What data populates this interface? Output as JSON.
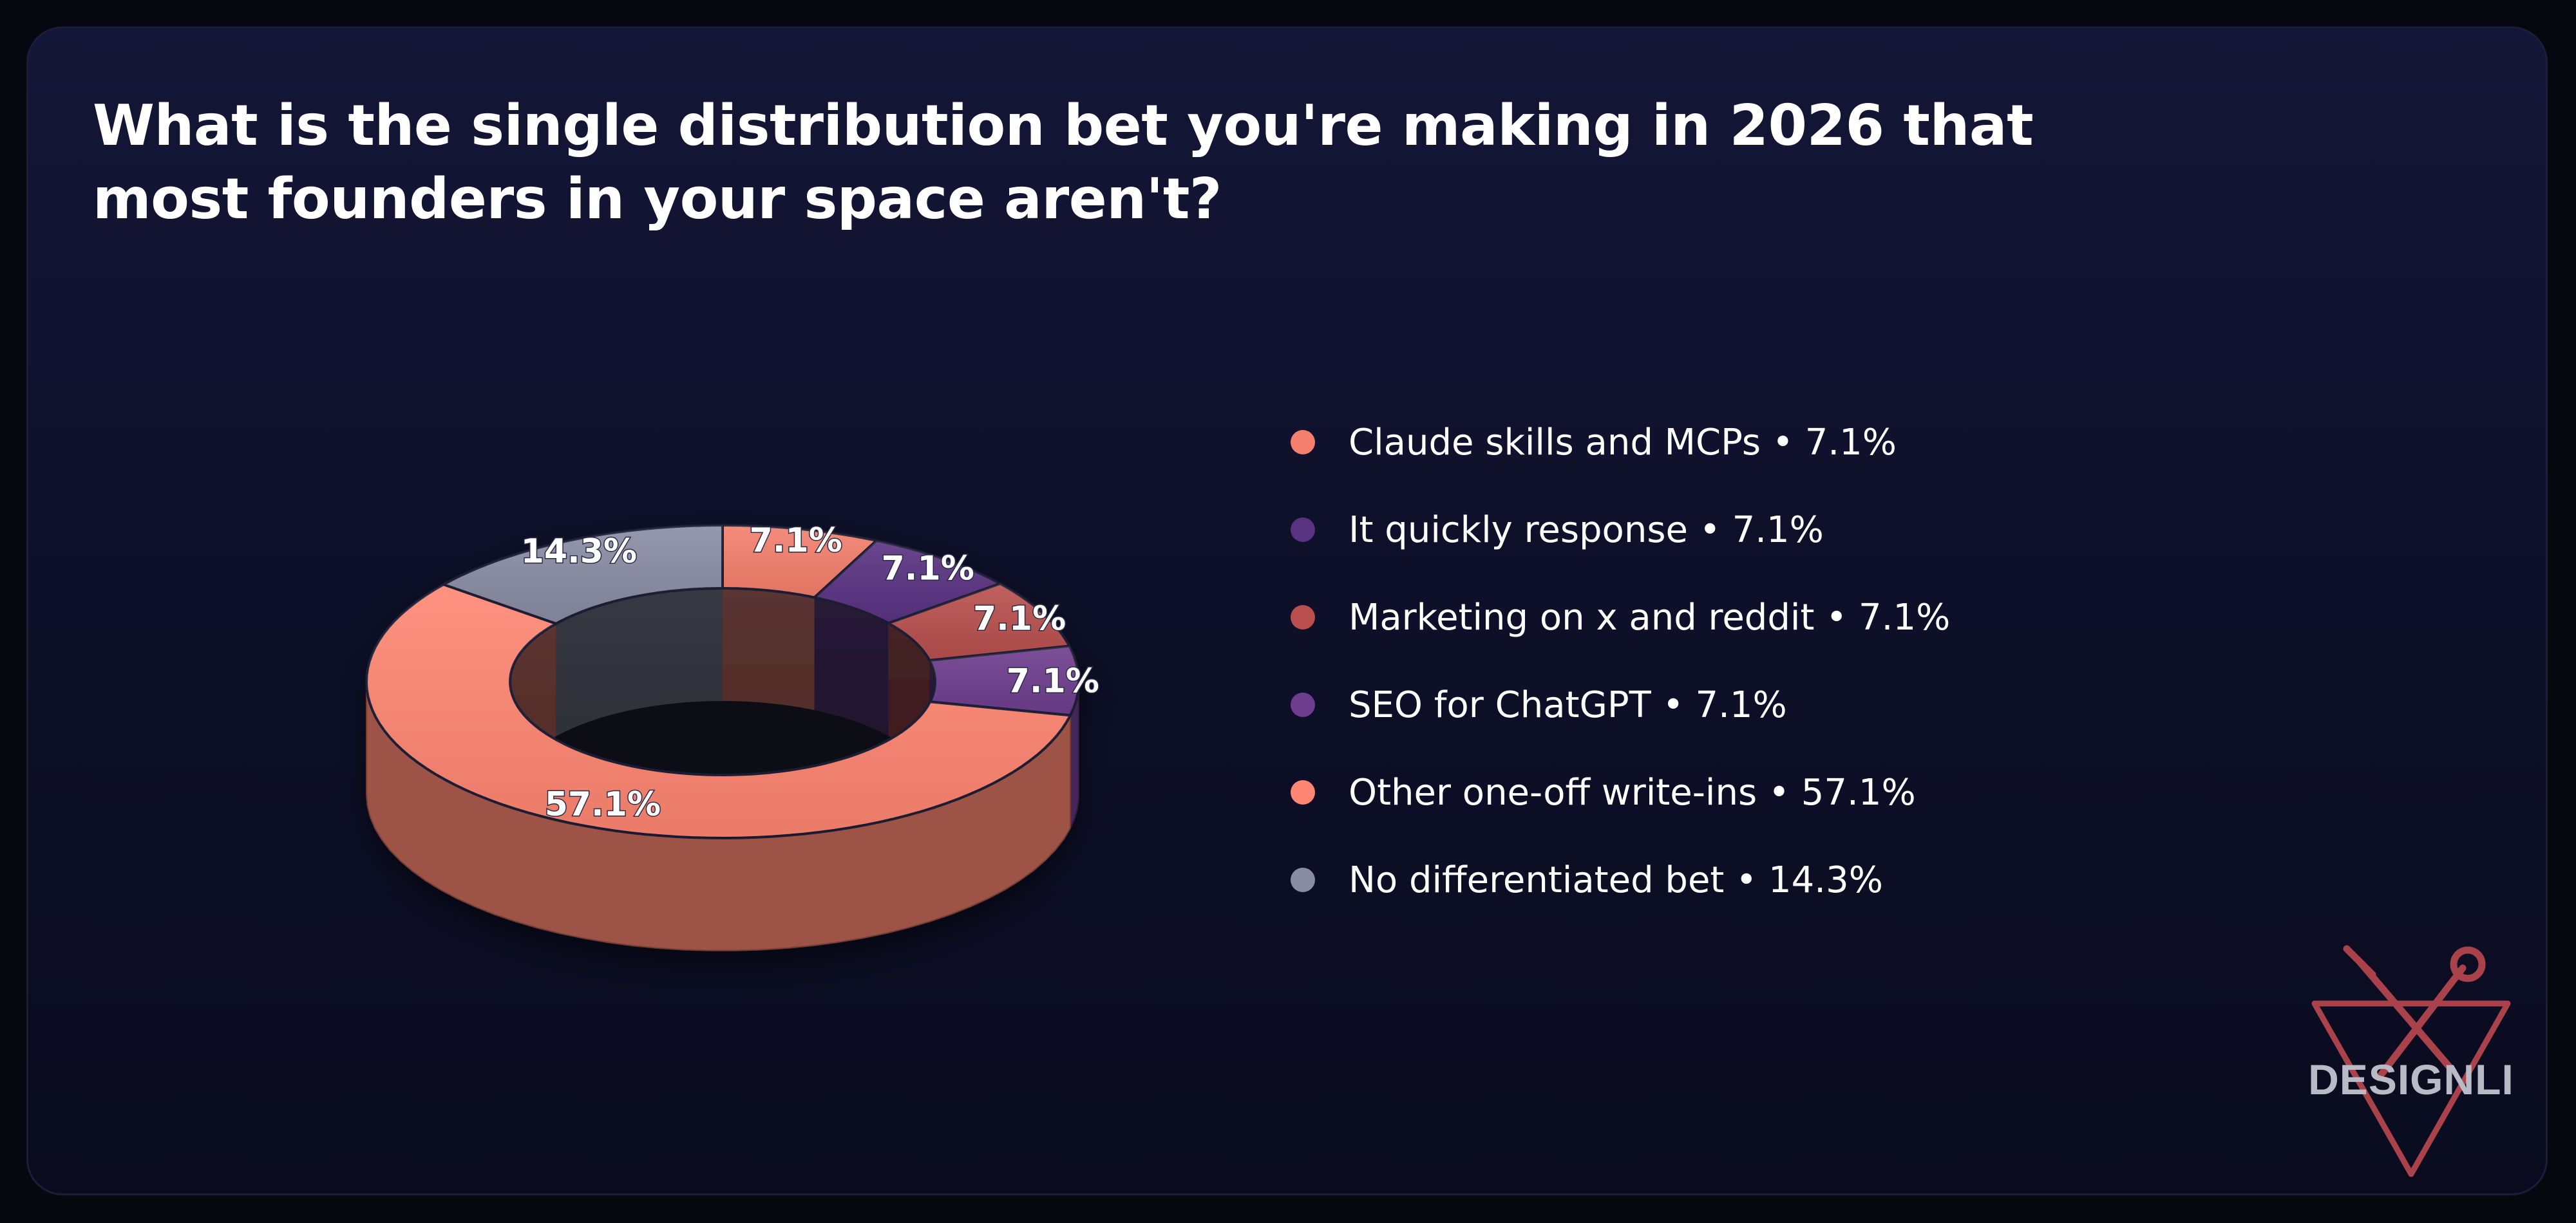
{
  "title": "What is the single distribution bet you're making in 2026 that most founders in your space aren't?",
  "brand": "DESIGNLI",
  "chart_data": {
    "type": "pie",
    "style": "3d-donut",
    "title": "What is the single distribution bet you're making in 2026 that most founders in your space aren't?",
    "legend_position": "right",
    "slices": [
      {
        "label": "Claude skills and MCPs",
        "value": 7.1,
        "display": "7.1%",
        "color": "#f47f6c"
      },
      {
        "label": "It quickly response",
        "value": 7.1,
        "display": "7.1%",
        "color": "#5a3282"
      },
      {
        "label": "Marketing on x and reddit",
        "value": 7.1,
        "display": "7.1%",
        "color": "#b9504e"
      },
      {
        "label": "SEO for ChatGPT",
        "value": 7.1,
        "display": "7.1%",
        "color": "#6e3e8e"
      },
      {
        "label": "Other one-off write-ins",
        "value": 57.1,
        "display": "57.1%",
        "color": "#ff8672"
      },
      {
        "label": "No differentiated bet",
        "value": 14.3,
        "display": "14.3%",
        "color": "#8a8ca3"
      }
    ]
  }
}
